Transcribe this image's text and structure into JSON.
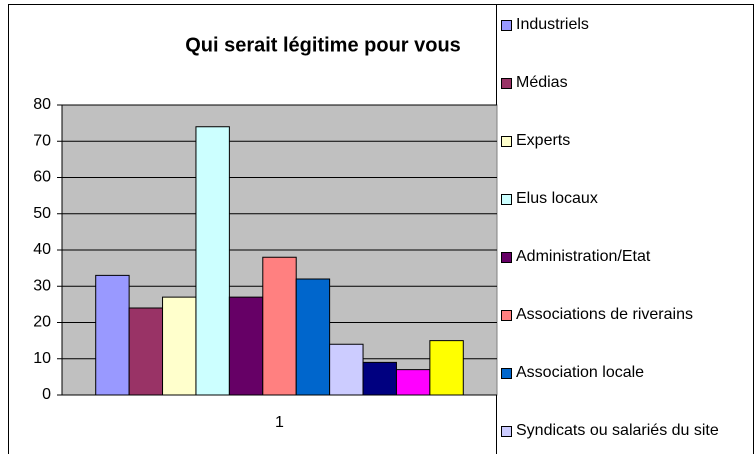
{
  "chart_data": {
    "type": "bar",
    "title": "Qui serait légitime pour vous",
    "categories": [
      "1"
    ],
    "series": [
      {
        "name": "Industriels",
        "color": "#9999ff",
        "values": [
          33
        ]
      },
      {
        "name": "Médias",
        "color": "#993366",
        "values": [
          24
        ]
      },
      {
        "name": "Experts",
        "color": "#ffffcc",
        "values": [
          27
        ]
      },
      {
        "name": "Elus locaux",
        "color": "#ccffff",
        "values": [
          74
        ]
      },
      {
        "name": "Administration/Etat",
        "color": "#660066",
        "values": [
          27
        ]
      },
      {
        "name": "Associations de riverains",
        "color": "#ff8080",
        "values": [
          38
        ]
      },
      {
        "name": "Association locale",
        "color": "#0066cc",
        "values": [
          32
        ]
      },
      {
        "name": "Syndicats ou salariés du site",
        "color": "#ccccff",
        "values": [
          14
        ]
      },
      {
        "color": "#000080",
        "values": [
          9
        ]
      },
      {
        "color": "#ff00ff",
        "values": [
          7
        ]
      },
      {
        "color": "#ffff00",
        "values": [
          15
        ]
      }
    ],
    "ylim": [
      0,
      80
    ],
    "yticks": [
      0,
      10,
      20,
      30,
      40,
      50,
      60,
      70,
      80
    ],
    "plot_color": "#c0c0c0",
    "grid": true
  }
}
